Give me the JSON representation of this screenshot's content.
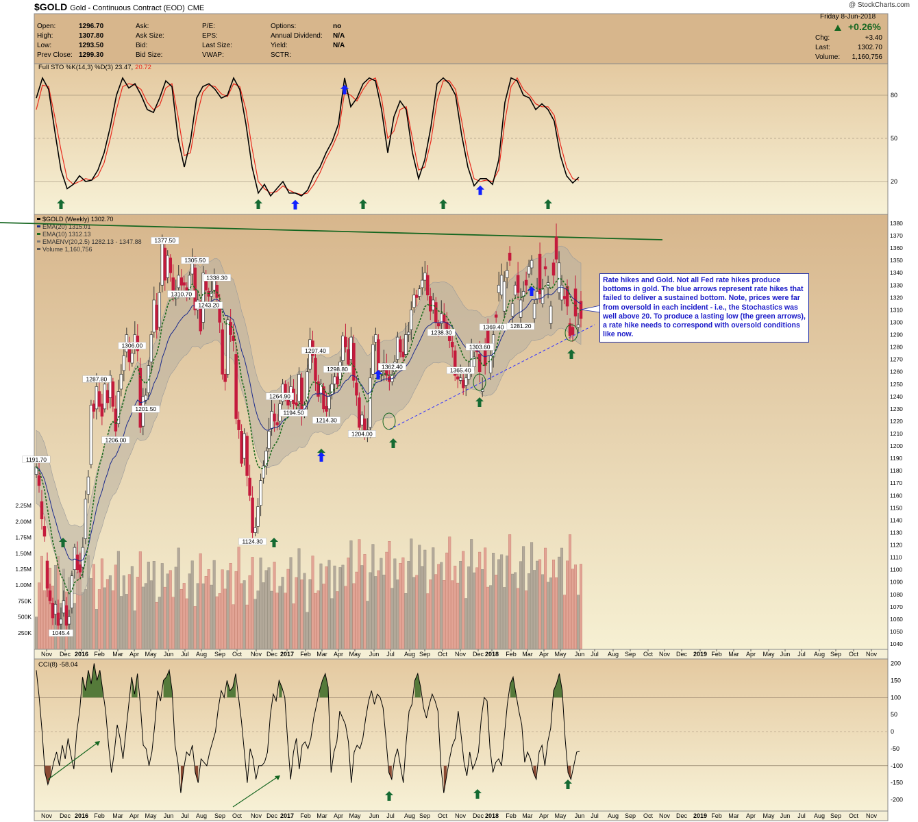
{
  "header": {
    "symbol": "$GOLD",
    "title": "Gold - Continuous Contract (EOD)",
    "exchange": "CME",
    "watermark": "@ StockCharts.com",
    "date": "Friday   8-Jun-2018",
    "change_pct": "+0.26%",
    "stats_left": [
      {
        "label": "Open:",
        "value": "1296.70"
      },
      {
        "label": "High:",
        "value": "1307.80"
      },
      {
        "label": "Low:",
        "value": "1293.50"
      },
      {
        "label": "Prev Close:",
        "value": "1299.30"
      }
    ],
    "stats_mid": [
      {
        "label": "Ask:",
        "value": ""
      },
      {
        "label": "Ask Size:",
        "value": ""
      },
      {
        "label": "Bid:",
        "value": ""
      },
      {
        "label": "Bid Size:",
        "value": ""
      }
    ],
    "stats_mid2": [
      {
        "label": "P/E:",
        "value": ""
      },
      {
        "label": "EPS:",
        "value": ""
      },
      {
        "label": "Last Size:",
        "value": ""
      },
      {
        "label": "VWAP:",
        "value": ""
      }
    ],
    "stats_mid3": [
      {
        "label": "Options:",
        "value": "no"
      },
      {
        "label": "Annual Dividend:",
        "value": "N/A"
      },
      {
        "label": "Yield:",
        "value": "N/A"
      },
      {
        "label": "SCTR:",
        "value": ""
      }
    ],
    "stats_right": [
      {
        "label": "Chg:",
        "value": "+3.40"
      },
      {
        "label": "Last:",
        "value": "1302.70"
      },
      {
        "label": "Volume:",
        "value": "1,160,756"
      }
    ]
  },
  "annotation": "Rate hikes and Gold. Not all Fed rate hikes produce bottoms in gold. The blue arrows represent rate hikes that failed to deliver a sustained bottom. Note, prices were far from oversold in each incident - i.e., the Stochastics was well above 20. To produce a lasting low (the green arrows), a rate hike needs to correspond with oversold conditions like now.",
  "colors": {
    "panel_top": "#d7b68c",
    "panel_bottom": "#f6f0d3",
    "up": "#ffffff",
    "down": "#c41a3c",
    "ema20": "#1a2a8c",
    "ema10": "#1c6a1c",
    "envelope": "#a9a9a9",
    "trendline_top": "#156620",
    "trendline_bottom": "#3333ff",
    "green_arrow": "#156a32",
    "blue_arrow": "#1020ff",
    "cci_fill_pos": "#557a3a",
    "cci_fill_neg": "#8a4a33"
  },
  "chart_data": [
    {
      "type": "line",
      "panel": "stochastic",
      "title": "Full STO %K(14,3) %D(3) 23.47, 20.72",
      "legend_text": "Full STO %K(14,3) %D(3) 23.47,",
      "legend_value": "20.72",
      "ylim": [
        0,
        100
      ],
      "yticks": [
        20,
        50,
        80
      ],
      "series": [
        {
          "name": "%K",
          "color": "#000000",
          "values": [
            78,
            92,
            84,
            55,
            28,
            15,
            18,
            24,
            20,
            21,
            28,
            40,
            58,
            80,
            92,
            85,
            88,
            80,
            70,
            68,
            78,
            90,
            86,
            50,
            30,
            48,
            78,
            86,
            88,
            84,
            78,
            80,
            92,
            84,
            60,
            30,
            12,
            18,
            10,
            15,
            20,
            12,
            12,
            10,
            14,
            24,
            30,
            40,
            48,
            60,
            92,
            72,
            78,
            88,
            92,
            90,
            70,
            40,
            65,
            76,
            70,
            40,
            22,
            35,
            58,
            88,
            92,
            88,
            80,
            52,
            30,
            17,
            22,
            22,
            18,
            35,
            75,
            92,
            90,
            80,
            78,
            70,
            74,
            70,
            62,
            38,
            24,
            19,
            23
          ]
        },
        {
          "name": "%D",
          "color": "#e8291c",
          "values": [
            70,
            87,
            86,
            65,
            42,
            22,
            18,
            20,
            22,
            21,
            24,
            33,
            50,
            70,
            86,
            88,
            87,
            84,
            75,
            70,
            73,
            85,
            88,
            65,
            38,
            40,
            65,
            82,
            87,
            86,
            81,
            79,
            88,
            86,
            70,
            43,
            20,
            15,
            12,
            13,
            17,
            14,
            12,
            11,
            12,
            18,
            26,
            36,
            44,
            54,
            82,
            80,
            76,
            84,
            90,
            92,
            78,
            50,
            55,
            70,
            72,
            50,
            28,
            30,
            48,
            76,
            90,
            90,
            84,
            62,
            38,
            22,
            20,
            21,
            20,
            28,
            62,
            86,
            92,
            84,
            80,
            74,
            72,
            72,
            66,
            46,
            30,
            22,
            21
          ]
        }
      ],
      "green_arrows": [
        4,
        36,
        53,
        66,
        83
      ],
      "blue_arrows": [
        42,
        50,
        72
      ]
    },
    {
      "type": "candlestick",
      "panel": "price",
      "title": "$GOLD (Weekly) 1302.70",
      "legend": [
        {
          "name": "$GOLD (Weekly) 1302.70"
        },
        {
          "name": "EMA(20) 1315.01"
        },
        {
          "name": "EMA(10) 1312.13"
        },
        {
          "name": "EMAENV(20,2.5) 1282.13 - 1347.88"
        },
        {
          "name": "Volume 1,160,756"
        }
      ],
      "ylim": [
        1035,
        1385
      ],
      "yticks": [
        1040,
        1050,
        1060,
        1070,
        1080,
        1090,
        1100,
        1110,
        1120,
        1130,
        1140,
        1150,
        1160,
        1170,
        1180,
        1190,
        1200,
        1210,
        1220,
        1230,
        1240,
        1250,
        1260,
        1270,
        1280,
        1290,
        1300,
        1310,
        1320,
        1330,
        1340,
        1350,
        1360,
        1370,
        1380
      ],
      "close": [
        1183,
        1168,
        1141,
        1127,
        1085,
        1075,
        1061,
        1072,
        1055,
        1060,
        1075,
        1055,
        1062,
        1095,
        1118,
        1100,
        1098,
        1118,
        1157,
        1175,
        1233,
        1228,
        1248,
        1232,
        1224,
        1250,
        1235,
        1257,
        1232,
        1212,
        1244,
        1258,
        1273,
        1290,
        1268,
        1275,
        1290,
        1277,
        1215,
        1240,
        1241,
        1265,
        1290,
        1318,
        1294,
        1324,
        1364,
        1334,
        1354,
        1340,
        1320,
        1325,
        1338,
        1330,
        1330,
        1320,
        1338,
        1349,
        1310,
        1318,
        1293,
        1340,
        1326,
        1321,
        1325,
        1334,
        1320,
        1300,
        1258,
        1252,
        1302,
        1290,
        1285,
        1222,
        1213,
        1186,
        1210,
        1176,
        1160,
        1130,
        1134,
        1151,
        1172,
        1184,
        1196,
        1212,
        1228,
        1220,
        1217,
        1234,
        1250,
        1242,
        1233,
        1248,
        1234,
        1233,
        1258,
        1225,
        1233,
        1260,
        1286,
        1273,
        1253,
        1240,
        1250,
        1230,
        1228,
        1240,
        1250,
        1256,
        1250,
        1268,
        1289,
        1280,
        1266,
        1288,
        1253,
        1241,
        1215,
        1225,
        1208,
        1213,
        1255,
        1282,
        1290,
        1260,
        1260,
        1267,
        1257,
        1252,
        1258,
        1268,
        1288,
        1276,
        1272,
        1290,
        1292,
        1310,
        1322,
        1320,
        1327,
        1334,
        1340,
        1322,
        1309,
        1318,
        1300,
        1297,
        1307,
        1300,
        1292,
        1285,
        1280,
        1257,
        1254,
        1255,
        1247,
        1255,
        1262,
        1281,
        1272,
        1276,
        1260,
        1246,
        1265,
        1280,
        1273,
        1290,
        1304,
        1330,
        1338,
        1333,
        1342,
        1350,
        1315,
        1330,
        1324,
        1318,
        1325,
        1330,
        1345,
        1350,
        1315,
        1325,
        1323,
        1327,
        1343,
        1332,
        1313,
        1338,
        1351,
        1348,
        1330,
        1319,
        1313,
        1289,
        1290,
        1305,
        1298,
        1303
      ],
      "open_offset": [
        -6,
        8,
        14,
        8,
        22,
        8,
        12,
        -8,
        10,
        -4,
        -10,
        16,
        -6,
        -26,
        -18,
        12,
        6,
        -16,
        -32,
        -14,
        -48,
        6,
        -18,
        12,
        10,
        -20,
        10,
        -18,
        20,
        18,
        -26,
        -12,
        -12,
        -14,
        16,
        -8,
        -10,
        12,
        48,
        -24,
        -4,
        -22,
        -22,
        -26,
        20,
        -28,
        -34,
        26,
        -18,
        12,
        16,
        -6,
        -10,
        6,
        2,
        8,
        -14,
        -10,
        34,
        -8,
        18,
        -40,
        12,
        4,
        -4,
        -8,
        10,
        16,
        36,
        6,
        -44,
        10,
        4,
        52,
        8,
        26,
        -20,
        32,
        14,
        28,
        -4,
        -16,
        -20,
        -10,
        -12,
        -14,
        -14,
        6,
        2,
        -14,
        -14,
        8,
        8,
        -12,
        12,
        2,
        -22,
        30,
        -6,
        -24,
        -24,
        12,
        18,
        12,
        -8,
        18,
        4,
        -10,
        -8,
        -6,
        6,
        -14,
        -20,
        8,
        12,
        -18,
        30,
        10,
        24,
        -8,
        14,
        -4,
        -40,
        -24,
        -6,
        26,
        -2,
        -6,
        8,
        4,
        -6,
        -8,
        -18,
        10,
        4,
        -16,
        -2,
        -16,
        -10,
        2,
        -6,
        -6,
        -6,
        16,
        12,
        -8,
        16,
        2,
        -8,
        6,
        8,
        6,
        4,
        20,
        2,
        -2,
        6,
        -6,
        -8,
        -18,
        -8,
        4,
        14,
        -2,
        14,
        16,
        -14,
        -18,
        2,
        -6,
        -16,
        -24,
        -6,
        6,
        -10,
        -8,
        14,
        -14,
        -4,
        4,
        -6,
        -6,
        -12,
        -6,
        32,
        -12,
        2,
        -4,
        -14,
        10,
        18,
        -24,
        -12,
        2,
        16,
        10,
        6,
        22,
        -2,
        14,
        -6,
        4
      ]
    },
    {
      "type": "bar",
      "panel": "volume",
      "ylim": [
        0,
        2500000
      ],
      "yticks": [
        250000,
        500000,
        750000,
        1000000,
        1250000,
        1500000,
        1750000,
        2000000,
        2250000
      ],
      "ytick_labels": [
        "250K",
        "500K",
        "750K",
        "1.00M",
        "1.25M",
        "1.50M",
        "1.75M",
        "2.00M",
        "2.25M"
      ]
    },
    {
      "type": "line",
      "panel": "cci",
      "title": "CCI(8) -58.04",
      "ylim": [
        -225,
        205
      ],
      "yticks": [
        200,
        150,
        100,
        50,
        0,
        -50,
        -100,
        -150,
        -200
      ],
      "ytick_labels": [
        "200",
        "150",
        "100",
        "50",
        "0",
        "-50",
        "-100",
        "-150",
        "-200"
      ],
      "values": [
        180,
        100,
        0,
        -120,
        -155,
        -130,
        -90,
        -60,
        -100,
        -40,
        -80,
        -20,
        -70,
        -110,
        0,
        60,
        160,
        120,
        180,
        140,
        200,
        150,
        180,
        120,
        60,
        -40,
        -120,
        -60,
        20,
        -20,
        -80,
        0,
        80,
        160,
        110,
        170,
        80,
        -40,
        -50,
        -100,
        -60,
        20,
        120,
        90,
        150,
        160,
        180,
        120,
        -40,
        -90,
        -180,
        -110,
        -60,
        -70,
        -40,
        -120,
        -150,
        -80,
        -90,
        -100,
        -60,
        -30,
        0,
        70,
        120,
        100,
        150,
        120,
        130,
        170,
        100,
        30,
        -60,
        -150,
        -50,
        -80,
        -140,
        -100,
        -100,
        -90,
        -60,
        50,
        110,
        90,
        150,
        130,
        100,
        -30,
        -140,
        -60,
        -20,
        -110,
        -40,
        -30,
        -50,
        -20,
        40,
        80,
        120,
        150,
        170,
        130,
        -120,
        -60,
        -30,
        60,
        40,
        20,
        -30,
        -150,
        -60,
        -40,
        -50,
        -20,
        40,
        90,
        120,
        80,
        110,
        100,
        70,
        -20,
        -120,
        -140,
        -80,
        -50,
        -100,
        -150,
        -30,
        60,
        80,
        150,
        170,
        130,
        70,
        40,
        80,
        110,
        90,
        60,
        -100,
        -180,
        -130,
        -80,
        -40,
        -20,
        60,
        -10,
        -90,
        -130,
        -60,
        -110,
        -90,
        -60,
        40,
        100,
        90,
        -50,
        -120,
        -90,
        -80,
        -100,
        -10,
        80,
        140,
        160,
        110,
        60,
        20,
        -90,
        -60,
        -80,
        -120,
        -140,
        -60,
        -40,
        -100,
        -30,
        10,
        120,
        140,
        170,
        120,
        -20,
        -120,
        -140,
        -100,
        -60,
        -58
      ]
    }
  ],
  "price_labels": [
    {
      "label": "1191.70",
      "i": 0
    },
    {
      "label": "1045.4",
      "i": 9
    },
    {
      "label": "1287.80",
      "i": 22
    },
    {
      "label": "1206.00",
      "i": 29
    },
    {
      "label": "1306.00",
      "i": 35
    },
    {
      "label": "1201.50",
      "i": 40
    },
    {
      "label": "1377.50",
      "i": 47
    },
    {
      "label": "1310.70",
      "i": 53
    },
    {
      "label": "1305.50",
      "i": 58
    },
    {
      "label": "1338.30",
      "i": 66
    },
    {
      "label": "1243.20",
      "i": 63
    },
    {
      "label": "1124.30",
      "i": 79
    },
    {
      "label": "1264.90",
      "i": 89
    },
    {
      "label": "1194.50",
      "i": 94
    },
    {
      "label": "1297.40",
      "i": 102
    },
    {
      "label": "1298.80",
      "i": 110
    },
    {
      "label": "1214.30",
      "i": 106
    },
    {
      "label": "1204.00",
      "i": 119
    },
    {
      "label": "1362.40",
      "i": 130
    },
    {
      "label": "1238.30",
      "i": 148
    },
    {
      "label": "1365.40",
      "i": 155
    },
    {
      "label": "1303.60",
      "i": 162
    },
    {
      "label": "1369.40",
      "i": 167
    },
    {
      "label": "1281.20",
      "i": 177
    }
  ],
  "x_axis": {
    "labels": [
      "Nov",
      "Dec",
      "2016",
      "Feb",
      "Mar",
      "Apr",
      "May",
      "Jun",
      "Jul",
      "Aug",
      "Sep",
      "Oct",
      "Nov",
      "Dec",
      "2017",
      "Feb",
      "Mar",
      "Apr",
      "May",
      "Jun",
      "Jul",
      "Aug",
      "Sep",
      "Oct",
      "Nov",
      "Dec",
      "2018",
      "Feb",
      "Mar",
      "Apr",
      "May",
      "Jun",
      "Jul",
      "Aug",
      "Sep",
      "Oct",
      "Nov",
      "Dec",
      "2019",
      "Feb",
      "Mar",
      "Apr",
      "May",
      "Jun",
      "Jul",
      "Aug",
      "Sep",
      "Oct",
      "Nov"
    ],
    "bold": [
      "2016",
      "2017",
      "2018",
      "2019"
    ]
  }
}
